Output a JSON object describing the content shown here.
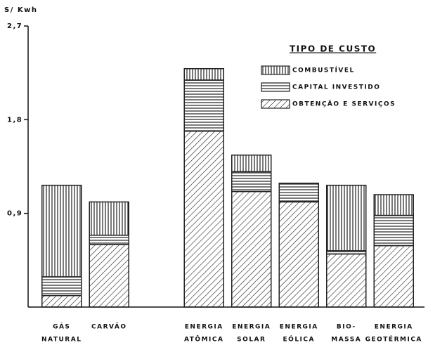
{
  "chart_data": {
    "type": "stacked-bar",
    "y_label": "S/ Kwh",
    "legend_title": "TIPO DE CUSTO",
    "legend": "upper right",
    "categories": [
      [
        "GÁS",
        "NATURAL"
      ],
      [
        "CARVÃO"
      ],
      null,
      [
        "ENERGIA",
        "ATÔMICA"
      ],
      [
        "ENERGIA",
        "SOLAR"
      ],
      [
        "ENERGIA",
        "EÓLICA"
      ],
      [
        "BIO-",
        "MASSA"
      ],
      [
        "ENERGIA",
        "GEOTÉRMICA"
      ]
    ],
    "series": [
      {
        "name": "OBTENÇÃO E SERVIÇOS",
        "color": "#222",
        "pattern": "diagonal",
        "values": [
          0.11,
          0.6,
          null,
          1.69,
          1.11,
          1.01,
          0.51,
          0.59
        ]
      },
      {
        "name": "CAPITAL INVESTIDO",
        "color": "#222",
        "pattern": "horizontal",
        "values": [
          0.18,
          0.09,
          null,
          0.49,
          0.19,
          0.18,
          0.03,
          0.29
        ]
      },
      {
        "name": "COMBUSTÍVEL",
        "color": "#222",
        "pattern": "vertical",
        "values": [
          0.88,
          0.32,
          null,
          0.11,
          0.16,
          0,
          0.63,
          0.2
        ]
      }
    ],
    "ylim": [
      0,
      2.7
    ],
    "yticks": [
      {
        "value": 0.9,
        "label": "0,9"
      },
      {
        "value": 1.8,
        "label": "1,8"
      },
      {
        "value": 2.7,
        "label": "2,7"
      }
    ]
  }
}
